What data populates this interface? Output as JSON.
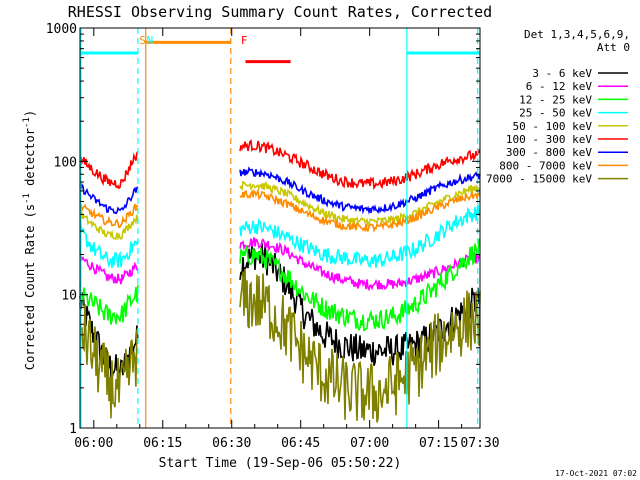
{
  "chart_data": {
    "type": "line",
    "title": "RHESSI Observing Summary Count Rates, Corrected",
    "xlabel": "Start Time (19-Sep-06 05:50:22)",
    "ylabel_main": "Corrected Count Rate (s",
    "ylabel_sup1": "-1",
    "ylabel_mid": " detector",
    "ylabel_sup2": "-1",
    "ylabel_end": ")",
    "yscale": "log",
    "ylim": [
      1,
      1000
    ],
    "xlim_minutes": [
      5.0,
      92.0
    ],
    "y_tick_labels": [
      "1",
      "10",
      "100",
      "1000"
    ],
    "y_tick_values": [
      1,
      10,
      100,
      1000
    ],
    "x_tick_labels": [
      "06:00",
      "06:15",
      "06:30",
      "06:45",
      "07:00",
      "07:15",
      "07:30"
    ],
    "x_tick_minutes": [
      8,
      23,
      38,
      53,
      68,
      83,
      98
    ],
    "legend_header": [
      "Det 1,3,4,5,6,9,",
      "Att 0"
    ],
    "legend_position": "right",
    "footer_date": "17-Oct-2021 07:02",
    "annotations": [
      {
        "text": "S",
        "minute": 17.9,
        "color": "#ff8c00"
      },
      {
        "text": "N",
        "minute": 19.5,
        "color": "#00ffff"
      },
      {
        "text": "F",
        "minute": 40.0,
        "color": "#ff0000"
      }
    ],
    "status_bars": [
      {
        "name": "night",
        "color": "#00ffff",
        "from": 5.0,
        "to": 17.6,
        "level": 650
      },
      {
        "name": "saa",
        "color": "#ff8c00",
        "from": 19.3,
        "to": 37.8,
        "level": 780
      },
      {
        "name": "flare",
        "color": "#ff0000",
        "from": 41.0,
        "to": 50.8,
        "level": 560
      },
      {
        "name": "night",
        "color": "#00ffff",
        "from": 76.1,
        "to": 92.0,
        "level": 650
      }
    ],
    "vertical_lines": [
      {
        "minute": 5.2,
        "color": "#00ffff",
        "style": "solid"
      },
      {
        "minute": 17.6,
        "color": "#00ffff",
        "style": "dashed"
      },
      {
        "minute": 19.3,
        "color": "#ff8c00",
        "style": "solid"
      },
      {
        "minute": 37.8,
        "color": "#ff8c00",
        "style": "dashed"
      },
      {
        "minute": 76.1,
        "color": "#00ffff",
        "style": "solid"
      },
      {
        "minute": 91.5,
        "color": "#00ffff",
        "style": "dashed"
      }
    ],
    "gap_minutes": [
      17.6,
      39.8
    ],
    "curve_minutes": [
      5,
      8,
      11,
      14,
      17,
      40,
      43,
      46,
      50,
      54,
      58,
      62,
      66,
      70,
      74,
      78,
      82,
      86,
      90,
      92
    ],
    "series": [
      {
        "name": "3 - 6 keV",
        "color": "#000000",
        "noise": 0.12,
        "values": [
          9,
          5,
          3,
          2.6,
          4.5,
          17,
          20,
          18,
          12,
          7,
          5,
          4.2,
          3.8,
          3.8,
          3.8,
          4.2,
          5,
          6.5,
          8.5,
          9
        ]
      },
      {
        "name": "6 - 12 keV",
        "color": "#ff00ff",
        "noise": 0.04,
        "values": [
          19,
          16,
          13.5,
          13,
          16,
          24,
          25,
          24,
          21,
          17,
          14.5,
          13,
          12,
          12,
          12,
          13,
          14.5,
          16.5,
          18.5,
          19
        ]
      },
      {
        "name": "12 - 25 keV",
        "color": "#00ff00",
        "noise": 0.08,
        "values": [
          10,
          8.5,
          7,
          7,
          10,
          19,
          20,
          18,
          14,
          10,
          8,
          7,
          6.5,
          6.5,
          7,
          8.5,
          11,
          15,
          20,
          22
        ]
      },
      {
        "name": "25 - 50 keV",
        "color": "#00ffff",
        "noise": 0.06,
        "values": [
          30,
          22,
          18,
          18,
          24,
          31,
          33,
          31,
          27,
          23,
          20,
          19,
          18,
          18,
          19.5,
          22,
          27,
          34,
          40,
          42
        ]
      },
      {
        "name": "50 - 100 keV",
        "color": "#c8c800",
        "noise": 0.03,
        "values": [
          40,
          33,
          28,
          28,
          37,
          66,
          67,
          64,
          57,
          48,
          41,
          37,
          35.5,
          35.5,
          37,
          41,
          48,
          55,
          62,
          64
        ]
      },
      {
        "name": "100 - 300 keV",
        "color": "#ff0000",
        "noise": 0.04,
        "values": [
          105,
          85,
          70,
          68,
          110,
          130,
          132,
          125,
          110,
          94,
          80,
          71,
          68,
          68,
          72,
          80,
          92,
          103,
          110,
          110
        ]
      },
      {
        "name": "300 - 800 keV",
        "color": "#0000ff",
        "noise": 0.03,
        "values": [
          65,
          52,
          44,
          42,
          60,
          83,
          83,
          80,
          70,
          59,
          51,
          46,
          44,
          44,
          47,
          53,
          62,
          70,
          76,
          78
        ]
      },
      {
        "name": "800 - 7000 keV",
        "color": "#ff8c00",
        "noise": 0.03,
        "values": [
          46,
          40,
          35,
          34,
          45,
          56,
          57,
          54,
          48,
          41,
          36,
          33,
          32,
          32,
          34,
          38,
          44,
          50,
          55,
          56
        ]
      },
      {
        "name": "7000 - 15000 keV",
        "color": "#808000",
        "noise": 0.25,
        "values": [
          6,
          3.5,
          2.2,
          1.8,
          3.5,
          9,
          9,
          8,
          5.5,
          3.5,
          2.5,
          2,
          1.8,
          1.8,
          2.2,
          2.8,
          4,
          5.5,
          6.5,
          6.5
        ]
      }
    ]
  }
}
